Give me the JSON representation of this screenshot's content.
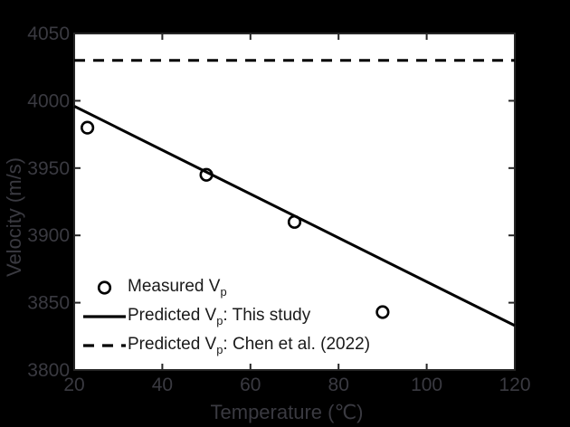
{
  "figure": {
    "background_color": "#000000",
    "plot_background_color": "#ffffff",
    "frame_color": "#262626",
    "axis_text_color": "#3a3a41",
    "legend_text_color": "#1a1a1a",
    "data_color": "#000000"
  },
  "chart_data": {
    "type": "scatter",
    "title": "",
    "xlabel": "Temperature (℃)",
    "ylabel": "Velocity (m/s)",
    "xlim": [
      20,
      120
    ],
    "ylim": [
      3800,
      4050
    ],
    "xticks": [
      20,
      40,
      60,
      80,
      100,
      120
    ],
    "yticks": [
      3800,
      3850,
      3900,
      3950,
      4000,
      4050
    ],
    "grid": false,
    "legend_position": "lower-left-inside",
    "series": [
      {
        "name": "Measured Vp",
        "type": "scatter",
        "marker": "open-circle",
        "points": [
          [
            23,
            3980
          ],
          [
            50,
            3945
          ],
          [
            70,
            3910
          ],
          [
            90,
            3843
          ]
        ]
      },
      {
        "name": "Predicted Vp: This study",
        "type": "line",
        "style": "solid",
        "points": [
          [
            20,
            3996
          ],
          [
            120,
            3833
          ]
        ]
      },
      {
        "name": "Predicted Vp: Chen et al. (2022)",
        "type": "line",
        "style": "dashed",
        "points": [
          [
            20,
            4030
          ],
          [
            120,
            4030
          ]
        ]
      }
    ]
  },
  "legend": {
    "items": [
      {
        "pre": "Measured V",
        "sub": "p",
        "post": ""
      },
      {
        "pre": "Predicted V",
        "sub": "p",
        "post": ": This study"
      },
      {
        "pre": "Predicted V",
        "sub": "p",
        "post": ": Chen et al. (2022)"
      }
    ]
  }
}
